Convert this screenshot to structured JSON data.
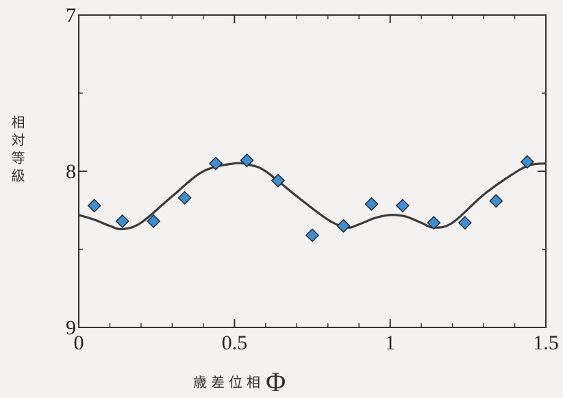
{
  "chart_data": {
    "type": "scatter",
    "title": "",
    "xlabel_text": "歳差位相",
    "xlabel_symbol": "Φ",
    "ylabel": "相対等級",
    "xlim": [
      0,
      1.5
    ],
    "ylim": [
      9,
      7
    ],
    "y_inverted": true,
    "x_ticks": [
      0,
      0.5,
      1,
      1.5
    ],
    "x_tick_labels": [
      "0",
      "0.5",
      "1",
      "1.5"
    ],
    "y_ticks": [
      7,
      8,
      9
    ],
    "y_tick_labels": [
      "7",
      "8",
      "9"
    ],
    "grid": false,
    "points_color": "#3d8fd1",
    "curve_color": "#3a3a3a",
    "series": [
      {
        "kind": "points",
        "x": [
          0.05,
          0.14,
          0.24,
          0.34,
          0.44,
          0.54,
          0.64,
          0.75,
          0.85,
          0.94,
          1.04,
          1.14,
          1.24,
          1.34,
          1.44
        ],
        "y": [
          8.22,
          8.32,
          8.32,
          8.17,
          7.95,
          7.93,
          8.06,
          8.41,
          8.35,
          8.21,
          8.22,
          8.33,
          8.33,
          8.19,
          7.94
        ]
      },
      {
        "kind": "curve",
        "x": [
          0.0,
          0.05,
          0.1,
          0.14,
          0.2,
          0.3,
          0.4,
          0.5,
          0.55,
          0.6,
          0.7,
          0.8,
          0.86,
          0.9,
          0.95,
          1.0,
          1.05,
          1.1,
          1.14,
          1.2,
          1.3,
          1.4,
          1.45,
          1.5
        ],
        "y": [
          8.28,
          8.31,
          8.35,
          8.37,
          8.33,
          8.16,
          8.0,
          7.95,
          7.96,
          8.0,
          8.16,
          8.31,
          8.36,
          8.34,
          8.3,
          8.28,
          8.29,
          8.33,
          8.36,
          8.33,
          8.15,
          8.01,
          7.96,
          7.95
        ]
      }
    ]
  }
}
